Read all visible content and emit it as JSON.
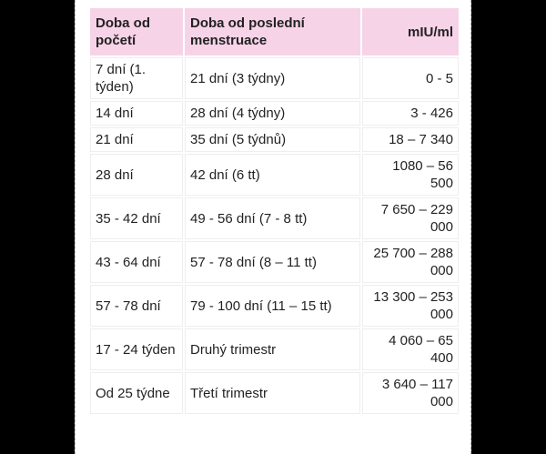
{
  "table": {
    "headers": [
      "Doba od početí",
      "Doba od poslední menstruace",
      "mIU/ml"
    ],
    "rows": [
      [
        "7 dní (1. týden)",
        "21 dní (3 týdny)",
        "0 - 5"
      ],
      [
        "14 dní",
        "28 dní (4 týdny)",
        "3 - 426"
      ],
      [
        "21 dní",
        "35 dní (5 týdnů)",
        "18 – 7 340"
      ],
      [
        "28 dní",
        "42 dní (6 tt)",
        "1080 – 56 500"
      ],
      [
        "35 - 42 dní",
        "49 - 56 dní (7 - 8 tt)",
        "7 650 – 229 000"
      ],
      [
        "43 - 64 dní",
        "57 - 78 dní (8 – 11 tt)",
        "25 700 – 288 000"
      ],
      [
        "57 - 78 dní",
        "79 - 100 dní (11 – 15 tt)",
        "13 300 – 253 000"
      ],
      [
        "17 - 24 týden",
        "Druhý trimestr",
        "4 060 – 65 400"
      ],
      [
        "Od 25 týdne",
        "Třetí trimestr",
        "3 640 – 117 000"
      ]
    ]
  },
  "colors": {
    "header_bg": "#f7d3e8",
    "background": "#000000"
  }
}
